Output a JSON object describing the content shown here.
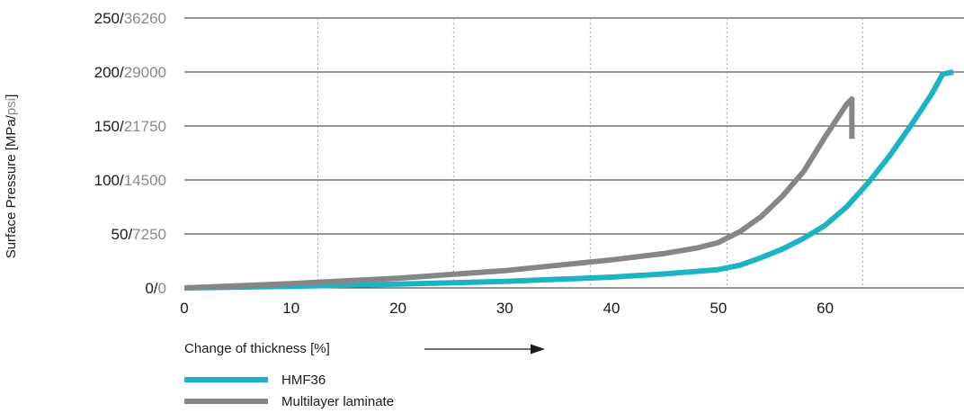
{
  "chart_data": {
    "type": "line",
    "title": "",
    "xlabel": "Change of thickness [%]",
    "ylabel": {
      "prefix": "Surface Pressure [MPa/",
      "unit": "psi",
      "suffix": "]"
    },
    "xlim": [
      0,
      73
    ],
    "ylim": [
      0,
      250
    ],
    "x_ticks": [
      "0",
      "10",
      "20",
      "30",
      "40",
      "50",
      "60"
    ],
    "x_tick_values": [
      0,
      10,
      20,
      30,
      40,
      50,
      60
    ],
    "y_ticks": [
      {
        "value": 0,
        "mpa": "0/",
        "psi": "0"
      },
      {
        "value": 50,
        "mpa": "50/",
        "psi": "7250"
      },
      {
        "value": 100,
        "mpa": "100/",
        "psi": "14500"
      },
      {
        "value": 150,
        "mpa": "150/",
        "psi": "21750"
      },
      {
        "value": 200,
        "mpa": "200/",
        "psi": "29000"
      },
      {
        "value": 250,
        "mpa": "250/",
        "psi": "36260"
      }
    ],
    "vertical_gridlines_x": [
      12.5,
      25.2,
      38,
      50.8,
      63.5
    ],
    "grid": "horizontal solid, vertical dotted",
    "legend": "bottom-left",
    "series": [
      {
        "name": "HMF36",
        "color": "#1cb4c4",
        "x": [
          0,
          10,
          20,
          30,
          40,
          45,
          50,
          52,
          54,
          56,
          58,
          60,
          62,
          64,
          66,
          68,
          70,
          71,
          72
        ],
        "y": [
          0,
          1.5,
          3.5,
          6,
          10,
          13,
          17,
          21,
          28,
          36,
          46,
          58,
          75,
          97,
          122,
          150,
          180,
          198,
          200
        ]
      },
      {
        "name": "Multilayer laminate",
        "color": "#868689",
        "x": [
          0,
          10,
          20,
          30,
          40,
          45,
          48,
          50,
          52,
          54,
          56,
          58,
          60,
          61,
          62,
          62.5,
          62.5
        ],
        "y": [
          0,
          4,
          9,
          16,
          26,
          32,
          37,
          42,
          52,
          66,
          85,
          108,
          140,
          155,
          170,
          175,
          138
        ]
      }
    ]
  }
}
